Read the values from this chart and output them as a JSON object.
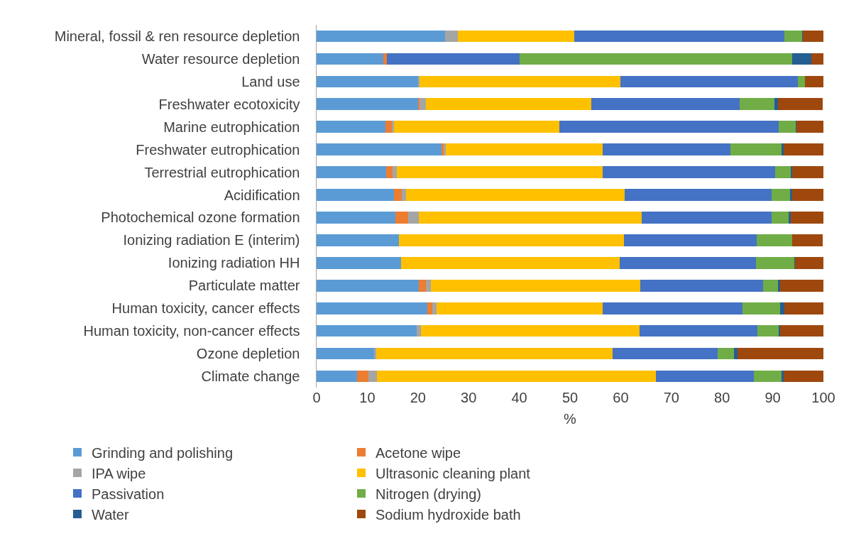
{
  "chart_data": {
    "type": "bar",
    "orientation": "horizontal",
    "stacked": true,
    "xlabel": "%",
    "xlim": [
      0,
      100
    ],
    "xticks": [
      0,
      10,
      20,
      30,
      40,
      50,
      60,
      70,
      80,
      90,
      100
    ],
    "grid": false,
    "legend": "bottom",
    "categories": [
      "Mineral, fossil & ren resource depletion",
      "Water resource depletion",
      "Land use",
      "Freshwater ecotoxicity",
      "Marine eutrophication",
      "Freshwater eutrophication",
      "Terrestrial eutrophication",
      "Acidification",
      "Photochemical ozone formation",
      "Ionizing radiation E (interim)",
      "Ionizing radiation HH",
      "Particulate matter",
      "Human toxicity, cancer effects",
      "Human toxicity, non-cancer effects",
      "Ozone depletion",
      "Climate change"
    ],
    "series": [
      {
        "name": "Grinding and polishing",
        "color": "#5b9bd5",
        "values": [
          25.3,
          13.2,
          20.0,
          20.0,
          13.6,
          24.7,
          13.7,
          15.3,
          15.5,
          16.2,
          16.6,
          20.2,
          21.9,
          19.8,
          11.4,
          8.0
        ]
      },
      {
        "name": "Acetone wipe",
        "color": "#ed7d31",
        "values": [
          0,
          0.6,
          0,
          0.3,
          1.2,
          0.3,
          1.3,
          1.5,
          2.5,
          0,
          0,
          1.3,
          0.9,
          0,
          0,
          2.2
        ]
      },
      {
        "name": "IPA wipe",
        "color": "#a5a5a5",
        "values": [
          2.6,
          0,
          0.3,
          1.2,
          0.5,
          0.5,
          0.8,
          0.9,
          2.2,
          0,
          0,
          1.1,
          0.9,
          0.8,
          0.3,
          1.7
        ]
      },
      {
        "name": "Ultrasonic cleaning plant",
        "color": "#ffc000",
        "values": [
          22.9,
          0,
          39.6,
          32.7,
          32.6,
          30.9,
          40.7,
          43.1,
          43.9,
          44.4,
          43.2,
          41.2,
          32.8,
          43.1,
          46.7,
          55.1
        ]
      },
      {
        "name": "Passivation",
        "color": "#4472c4",
        "values": [
          41.5,
          26.2,
          35.0,
          29.3,
          43.3,
          25.3,
          34.0,
          29.0,
          25.7,
          26.3,
          26.9,
          24.3,
          27.5,
          23.3,
          20.8,
          19.3
        ]
      },
      {
        "name": "Nitrogen (drying)",
        "color": "#70ad47",
        "values": [
          3.5,
          53.9,
          1.4,
          6.8,
          3.3,
          10.0,
          3.1,
          3.6,
          3.4,
          7.0,
          7.5,
          2.9,
          7.4,
          4.2,
          3.2,
          5.5
        ]
      },
      {
        "name": "Water",
        "color": "#255e91",
        "values": [
          0.2,
          3.7,
          0,
          0.8,
          0.2,
          0.4,
          0.2,
          0.4,
          0.3,
          0,
          0.2,
          0.4,
          0.9,
          0.3,
          0.6,
          0.3
        ]
      },
      {
        "name": "Sodium hydroxide bath",
        "color": "#9e480e",
        "values": [
          4.0,
          2.4,
          3.7,
          8.8,
          5.3,
          7.9,
          6.2,
          6.2,
          6.5,
          5.9,
          5.6,
          8.6,
          7.7,
          8.5,
          17.0,
          7.9
        ]
      }
    ]
  }
}
